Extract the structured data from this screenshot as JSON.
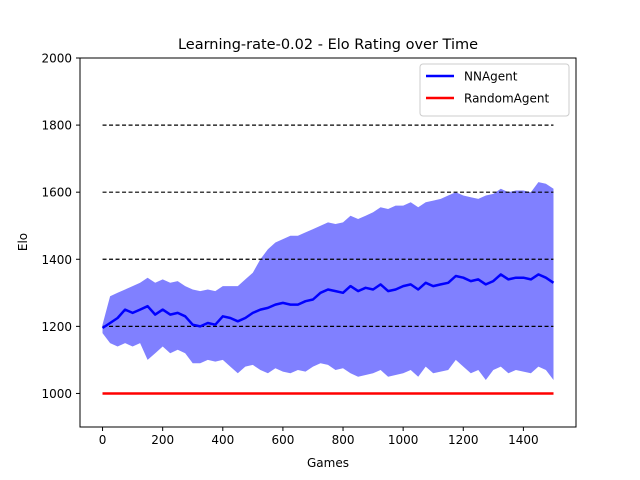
{
  "chart_data": {
    "type": "line",
    "title": "Learning-rate-0.02 - Elo Rating over Time",
    "xlabel": "Games",
    "ylabel": "Elo",
    "xlim": [
      -75,
      1575
    ],
    "ylim": [
      900,
      2000
    ],
    "xticks": [
      0,
      200,
      400,
      600,
      800,
      1000,
      1200,
      1400
    ],
    "yticks": [
      1000,
      1200,
      1400,
      1600,
      1800,
      2000
    ],
    "grid": false,
    "reference_lines": {
      "style": "dashed",
      "color": "#000000",
      "y": [
        1200,
        1400,
        1600,
        1800
      ],
      "x_range": [
        0,
        1500
      ]
    },
    "legend": {
      "placement": "top-right",
      "entries": [
        "NNAgent",
        "RandomAgent"
      ]
    },
    "series": [
      {
        "name": "NNAgent",
        "color": "#0000ff",
        "band_color": "#8080ff",
        "x": [
          0,
          25,
          50,
          75,
          100,
          125,
          150,
          175,
          200,
          225,
          250,
          275,
          300,
          325,
          350,
          375,
          400,
          425,
          450,
          475,
          500,
          525,
          550,
          575,
          600,
          625,
          650,
          675,
          700,
          725,
          750,
          775,
          800,
          825,
          850,
          875,
          900,
          925,
          950,
          975,
          1000,
          1025,
          1050,
          1075,
          1100,
          1125,
          1150,
          1175,
          1200,
          1225,
          1250,
          1275,
          1300,
          1325,
          1350,
          1375,
          1400,
          1425,
          1450,
          1475,
          1500
        ],
        "mean": [
          1195,
          1210,
          1225,
          1250,
          1240,
          1250,
          1260,
          1235,
          1250,
          1235,
          1240,
          1230,
          1205,
          1200,
          1210,
          1205,
          1230,
          1225,
          1215,
          1225,
          1240,
          1250,
          1255,
          1265,
          1270,
          1265,
          1265,
          1275,
          1280,
          1300,
          1310,
          1305,
          1300,
          1320,
          1305,
          1315,
          1310,
          1325,
          1305,
          1310,
          1320,
          1325,
          1310,
          1330,
          1320,
          1325,
          1330,
          1350,
          1345,
          1335,
          1340,
          1325,
          1335,
          1355,
          1340,
          1345,
          1345,
          1340,
          1355,
          1345,
          1330
        ],
        "upper": [
          1205,
          1290,
          1300,
          1310,
          1320,
          1330,
          1345,
          1330,
          1340,
          1330,
          1335,
          1320,
          1310,
          1305,
          1310,
          1305,
          1320,
          1320,
          1320,
          1340,
          1360,
          1400,
          1430,
          1450,
          1460,
          1470,
          1470,
          1480,
          1490,
          1500,
          1510,
          1505,
          1510,
          1530,
          1520,
          1530,
          1540,
          1555,
          1550,
          1560,
          1560,
          1570,
          1555,
          1570,
          1575,
          1580,
          1590,
          1600,
          1590,
          1585,
          1580,
          1590,
          1595,
          1610,
          1600,
          1605,
          1605,
          1600,
          1630,
          1625,
          1610
        ],
        "lower": [
          1180,
          1150,
          1140,
          1150,
          1140,
          1150,
          1100,
          1120,
          1140,
          1120,
          1130,
          1120,
          1090,
          1090,
          1100,
          1095,
          1100,
          1080,
          1060,
          1080,
          1085,
          1070,
          1060,
          1075,
          1065,
          1060,
          1070,
          1065,
          1080,
          1090,
          1085,
          1070,
          1075,
          1060,
          1050,
          1055,
          1060,
          1070,
          1050,
          1055,
          1060,
          1070,
          1050,
          1080,
          1060,
          1065,
          1070,
          1100,
          1080,
          1060,
          1070,
          1040,
          1070,
          1080,
          1060,
          1070,
          1065,
          1060,
          1080,
          1070,
          1040
        ]
      },
      {
        "name": "RandomAgent",
        "color": "#ff0000",
        "x": [
          0,
          1500
        ],
        "mean": [
          1000,
          1000
        ]
      }
    ]
  }
}
